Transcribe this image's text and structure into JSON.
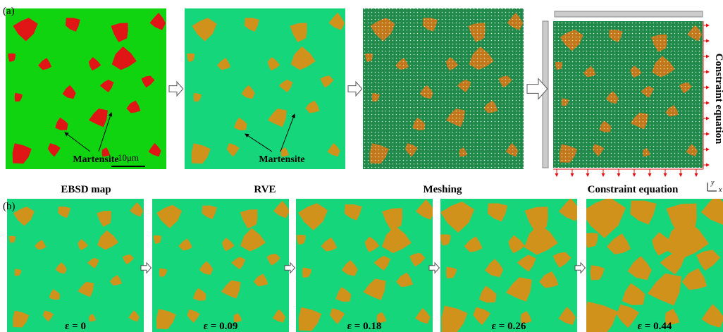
{
  "panel_a": {
    "label": "(a)",
    "captions": [
      "EBSD map",
      "RVE",
      "Meshing",
      "Constraint equation"
    ],
    "annotations": {
      "martensite_ebsd": "Martensite",
      "martensite_rve": "Martensite",
      "scale_bar": "10μm",
      "side_label": "Constraint equation",
      "axis_y": "y",
      "axis_x": "x"
    }
  },
  "panel_b": {
    "label": "(b)",
    "strain_labels": [
      "ε = 0",
      "ε = 0.09",
      "ε = 0.18",
      "ε = 0.26",
      "ε = 0.44"
    ]
  }
}
